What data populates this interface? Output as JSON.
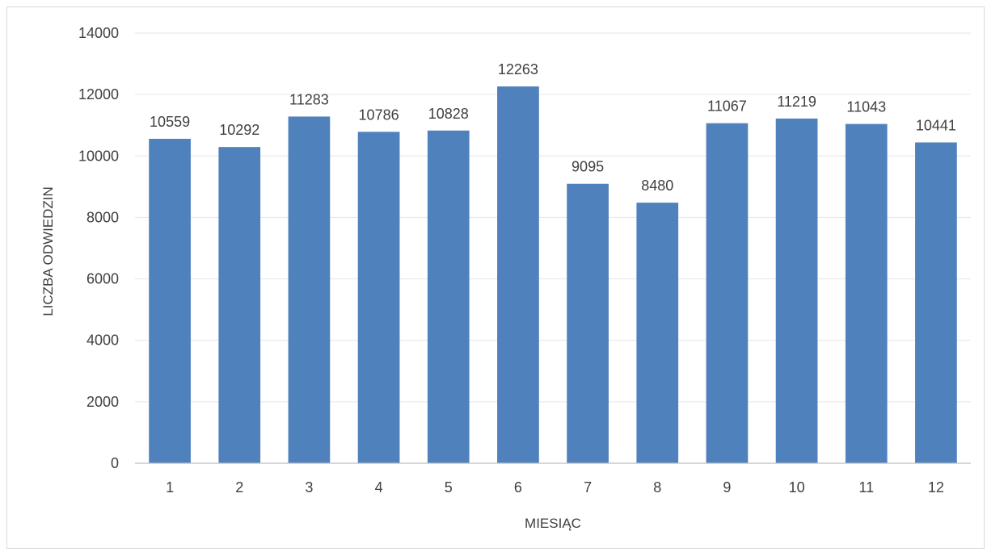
{
  "chart_data": {
    "type": "bar",
    "categories": [
      "1",
      "2",
      "3",
      "4",
      "5",
      "6",
      "7",
      "8",
      "9",
      "10",
      "11",
      "12"
    ],
    "values": [
      10559,
      10292,
      11283,
      10786,
      10828,
      12263,
      9095,
      8480,
      11067,
      11219,
      11043,
      10441
    ],
    "xlabel": "MIESIĄC",
    "ylabel": "LICZBA ODWIEDZIN",
    "ylim": [
      0,
      14000
    ],
    "yticks": [
      "0",
      "2000",
      "4000",
      "6000",
      "8000",
      "10000",
      "12000",
      "14000"
    ],
    "data_labels": true,
    "grid": true,
    "legend": "none",
    "bar_color": "#4f81bd"
  }
}
